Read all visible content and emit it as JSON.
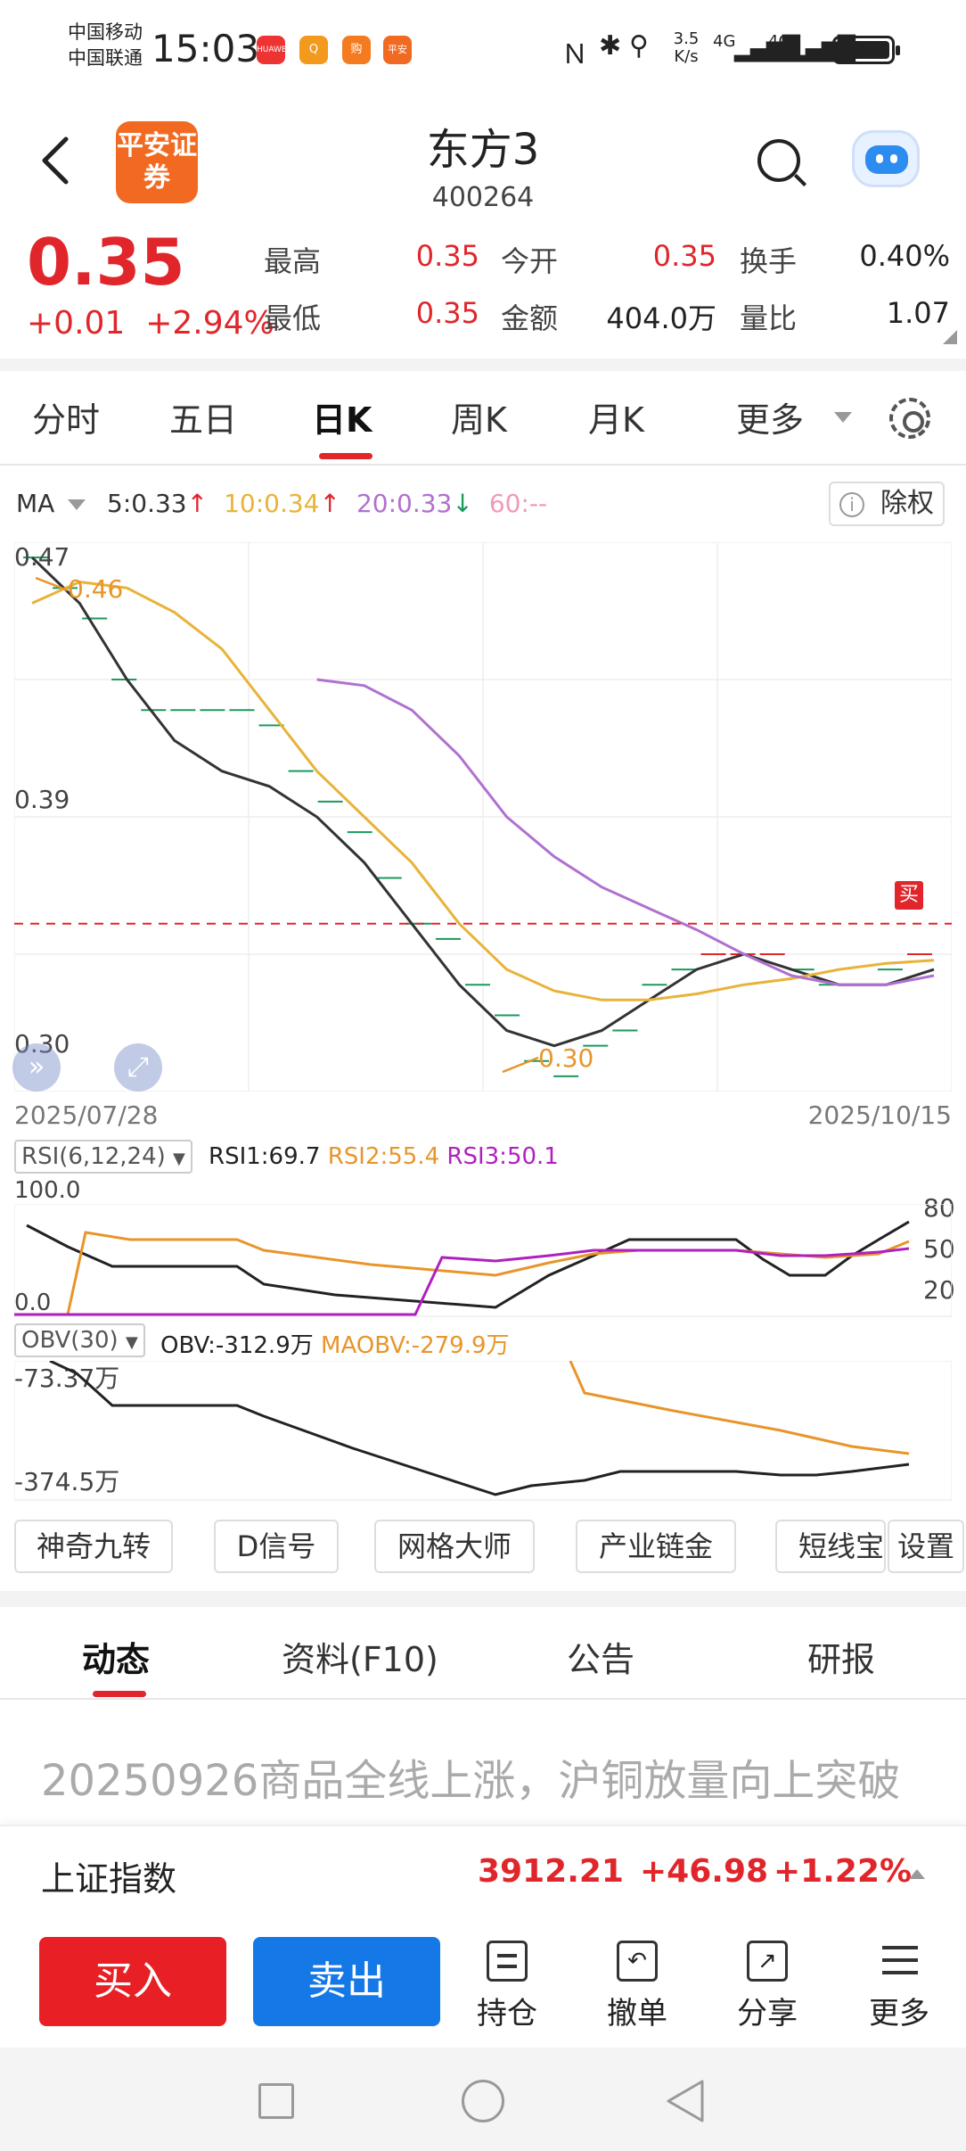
{
  "status_bar": {
    "carrier1": "中国移动",
    "carrier2": "中国联通",
    "time": "15:03",
    "app_icons": [
      "HUAWEI",
      "Q",
      "购",
      "平安"
    ],
    "net_speed": "3.5 K/s",
    "signal1": "4G",
    "signal2": "4G"
  },
  "header": {
    "logo_text": "平安证券",
    "title": "东方3",
    "code": "400264"
  },
  "quote": {
    "price": "0.35",
    "change": "+0.01",
    "change_pct": "+2.94%",
    "rows": [
      [
        {
          "label": "最高",
          "value": "0.35",
          "color": "red"
        },
        {
          "label": "今开",
          "value": "0.35",
          "color": "red"
        },
        {
          "label": "换手",
          "value": "0.40%",
          "color": "dark"
        }
      ],
      [
        {
          "label": "最低",
          "value": "0.35",
          "color": "red"
        },
        {
          "label": "金额",
          "value": "404.0万",
          "color": "dark"
        },
        {
          "label": "量比",
          "value": "1.07",
          "color": "dark"
        }
      ]
    ]
  },
  "kline_tabs": [
    "分时",
    "五日",
    "日K",
    "周K",
    "月K",
    "更多"
  ],
  "active_tab": "日K",
  "ma": {
    "label": "MA",
    "items": [
      {
        "text": "5:0.33",
        "arrow": "↑",
        "color": "#333333",
        "arrow_color": "#e0262b"
      },
      {
        "text": "10:0.34",
        "arrow": "↑",
        "color": "#e8b33a",
        "arrow_color": "#e0262b"
      },
      {
        "text": "20:0.33",
        "arrow": "↓",
        "color": "#b070d0",
        "arrow_color": "#1a9a5c"
      },
      {
        "text": "60:--",
        "arrow": "",
        "color": "#f09ab8",
        "arrow_color": ""
      }
    ],
    "chuquan": "除权"
  },
  "main_chart": {
    "y_top": "0.47",
    "y_mid": "0.39",
    "y_bottom": "0.30",
    "high_label": "0.46",
    "low_label": "0.30",
    "date_start": "2025/07/28",
    "date_end": "2025/10/15",
    "buy_marker": "买",
    "current_price_line": 0.35
  },
  "chart_data": {
    "type": "line",
    "title": "",
    "x_range": [
      "2025/07/28",
      "2025/10/15"
    ],
    "ylim": [
      0.295,
      0.475
    ],
    "series": [
      {
        "name": "5",
        "color": "#333333",
        "values": [
          0.47,
          0.455,
          0.43,
          0.41,
          0.4,
          0.395,
          0.385,
          0.37,
          0.35,
          0.33,
          0.315,
          0.31,
          0.315,
          0.325,
          0.335,
          0.34,
          0.335,
          0.33,
          0.33,
          0.335
        ]
      },
      {
        "name": "10",
        "color": "#e8b33a",
        "values": [
          0.455,
          0.462,
          0.46,
          0.452,
          0.44,
          0.42,
          0.4,
          0.385,
          0.37,
          0.35,
          0.335,
          0.328,
          0.325,
          0.325,
          0.327,
          0.33,
          0.332,
          0.335,
          0.337,
          0.338
        ]
      },
      {
        "name": "20",
        "color": "#b070d0",
        "values": [
          null,
          null,
          null,
          null,
          null,
          null,
          0.43,
          0.428,
          0.42,
          0.405,
          0.385,
          0.372,
          0.362,
          0.355,
          0.348,
          0.34,
          0.333,
          0.33,
          0.33,
          0.333
        ]
      },
      {
        "name": "60",
        "color": "#f09ab8",
        "values": []
      }
    ]
  },
  "rsi": {
    "label": "RSI(6,12,24)",
    "rsi1": "RSI1:69.7",
    "rsi2": "RSI2:55.4",
    "rsi3": "RSI3:50.1",
    "y_top": "100.0",
    "y_bottom": "0.0",
    "right_ticks": [
      "80",
      "50",
      "20"
    ]
  },
  "obv": {
    "label": "OBV(30)",
    "obv": "OBV:-312.9万",
    "maobv": "MAOBV:-279.9万",
    "y_top": "-73.37万",
    "y_bottom": "-374.5万"
  },
  "features": [
    "神奇九转",
    "D信号",
    "网格大师",
    "产业链金",
    "短线宝",
    "设置"
  ],
  "content_tabs": [
    "动态",
    "资料(F10)",
    "公告",
    "研报"
  ],
  "news_headline": "20250926商品全线上涨，沪铜放量向上突破",
  "index_bar": {
    "name": "上证指数",
    "value": "3912.21",
    "change": "+46.98",
    "pct": "+1.22%"
  },
  "actions": {
    "buy": "买入",
    "sell": "卖出",
    "items": [
      "持仓",
      "撤单",
      "分享",
      "更多"
    ]
  }
}
